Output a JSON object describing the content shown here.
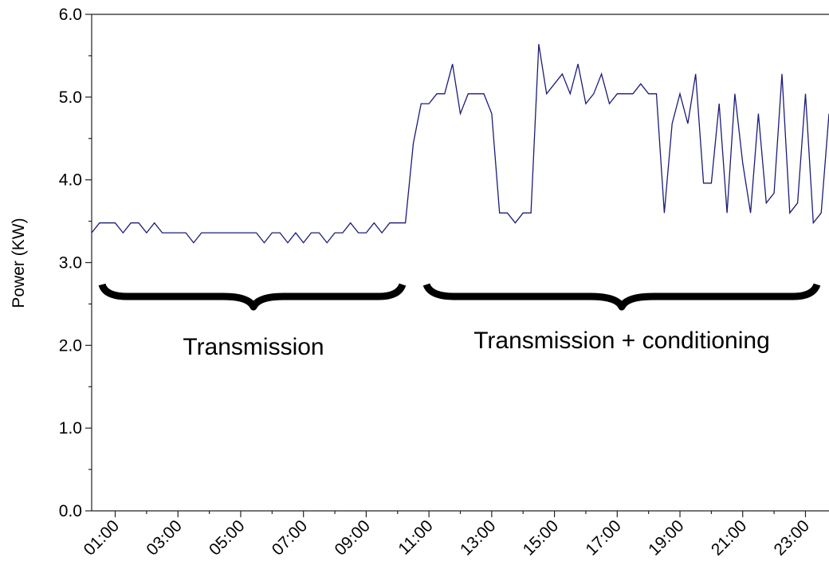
{
  "chart_data": {
    "type": "line",
    "y_label": "Power (KW)",
    "annotations": [
      "Transmission",
      "Transmission + conditioning"
    ],
    "color": "#1c1c78",
    "x": [
      0.25,
      0.5,
      0.75,
      1.0,
      1.25,
      1.5,
      1.75,
      2.0,
      2.25,
      2.5,
      2.75,
      3.0,
      3.25,
      3.5,
      3.75,
      4.0,
      4.25,
      4.5,
      4.75,
      5.0,
      5.25,
      5.5,
      5.75,
      6.0,
      6.25,
      6.5,
      6.75,
      7.0,
      7.25,
      7.5,
      7.75,
      8.0,
      8.25,
      8.5,
      8.75,
      9.0,
      9.25,
      9.5,
      9.75,
      10.0,
      10.25,
      10.5,
      10.75,
      11.0,
      11.25,
      11.5,
      11.75,
      12.0,
      12.25,
      12.5,
      12.75,
      13.0,
      13.25,
      13.5,
      13.75,
      14.0,
      14.25,
      14.5,
      14.75,
      15.0,
      15.25,
      15.5,
      15.75,
      16.0,
      16.25,
      16.5,
      16.75,
      17.0,
      17.25,
      17.5,
      17.75,
      18.0,
      18.25,
      18.5,
      18.75,
      19.0,
      19.25,
      19.5,
      19.75,
      20.0,
      20.25,
      20.5,
      20.75,
      21.0,
      21.25,
      21.5,
      21.75,
      22.0,
      22.25,
      22.5,
      22.75,
      23.0,
      23.25,
      23.5,
      23.75
    ],
    "values": [
      3.36,
      3.48,
      3.48,
      3.48,
      3.36,
      3.48,
      3.48,
      3.36,
      3.48,
      3.36,
      3.36,
      3.36,
      3.36,
      3.24,
      3.36,
      3.36,
      3.36,
      3.36,
      3.36,
      3.36,
      3.36,
      3.36,
      3.24,
      3.36,
      3.36,
      3.24,
      3.36,
      3.24,
      3.36,
      3.36,
      3.24,
      3.36,
      3.36,
      3.48,
      3.36,
      3.36,
      3.48,
      3.36,
      3.48,
      3.48,
      3.48,
      4.44,
      4.92,
      4.92,
      5.04,
      5.04,
      5.4,
      4.8,
      5.04,
      5.04,
      5.04,
      4.8,
      3.6,
      3.6,
      3.48,
      3.6,
      3.6,
      5.64,
      5.04,
      5.16,
      5.28,
      5.04,
      5.4,
      4.92,
      5.04,
      5.28,
      4.92,
      5.04,
      5.04,
      5.04,
      5.16,
      5.04,
      5.04,
      3.6,
      4.68,
      5.04,
      4.68,
      5.28,
      3.96,
      3.96,
      4.92,
      3.6,
      5.04,
      4.2,
      3.6,
      4.8,
      3.72,
      3.84,
      5.28,
      3.6,
      3.72,
      5.04,
      3.48,
      3.6,
      4.8
    ],
    "xlim": [
      0.25,
      23.75
    ],
    "xticks": [
      {
        "value": 1,
        "label": "01:00"
      },
      {
        "value": 3,
        "label": "03:00"
      },
      {
        "value": 5,
        "label": "05:00"
      },
      {
        "value": 7,
        "label": "07:00"
      },
      {
        "value": 9,
        "label": "09:00"
      },
      {
        "value": 11,
        "label": "11:00"
      },
      {
        "value": 13,
        "label": "13:00"
      },
      {
        "value": 15,
        "label": "15:00"
      },
      {
        "value": 17,
        "label": "17:00"
      },
      {
        "value": 19,
        "label": "19:00"
      },
      {
        "value": 21,
        "label": "21:00"
      },
      {
        "value": 23,
        "label": "23:00"
      }
    ],
    "ylim": [
      0,
      6
    ],
    "yticks": [
      {
        "value": 0,
        "label": "0.0"
      },
      {
        "value": 1,
        "label": "1.0"
      },
      {
        "value": 2,
        "label": "2.0"
      },
      {
        "value": 3,
        "label": "3.0"
      },
      {
        "value": 4,
        "label": "4.0"
      },
      {
        "value": 5,
        "label": "5.0"
      },
      {
        "value": 6,
        "label": "6.0"
      }
    ]
  }
}
